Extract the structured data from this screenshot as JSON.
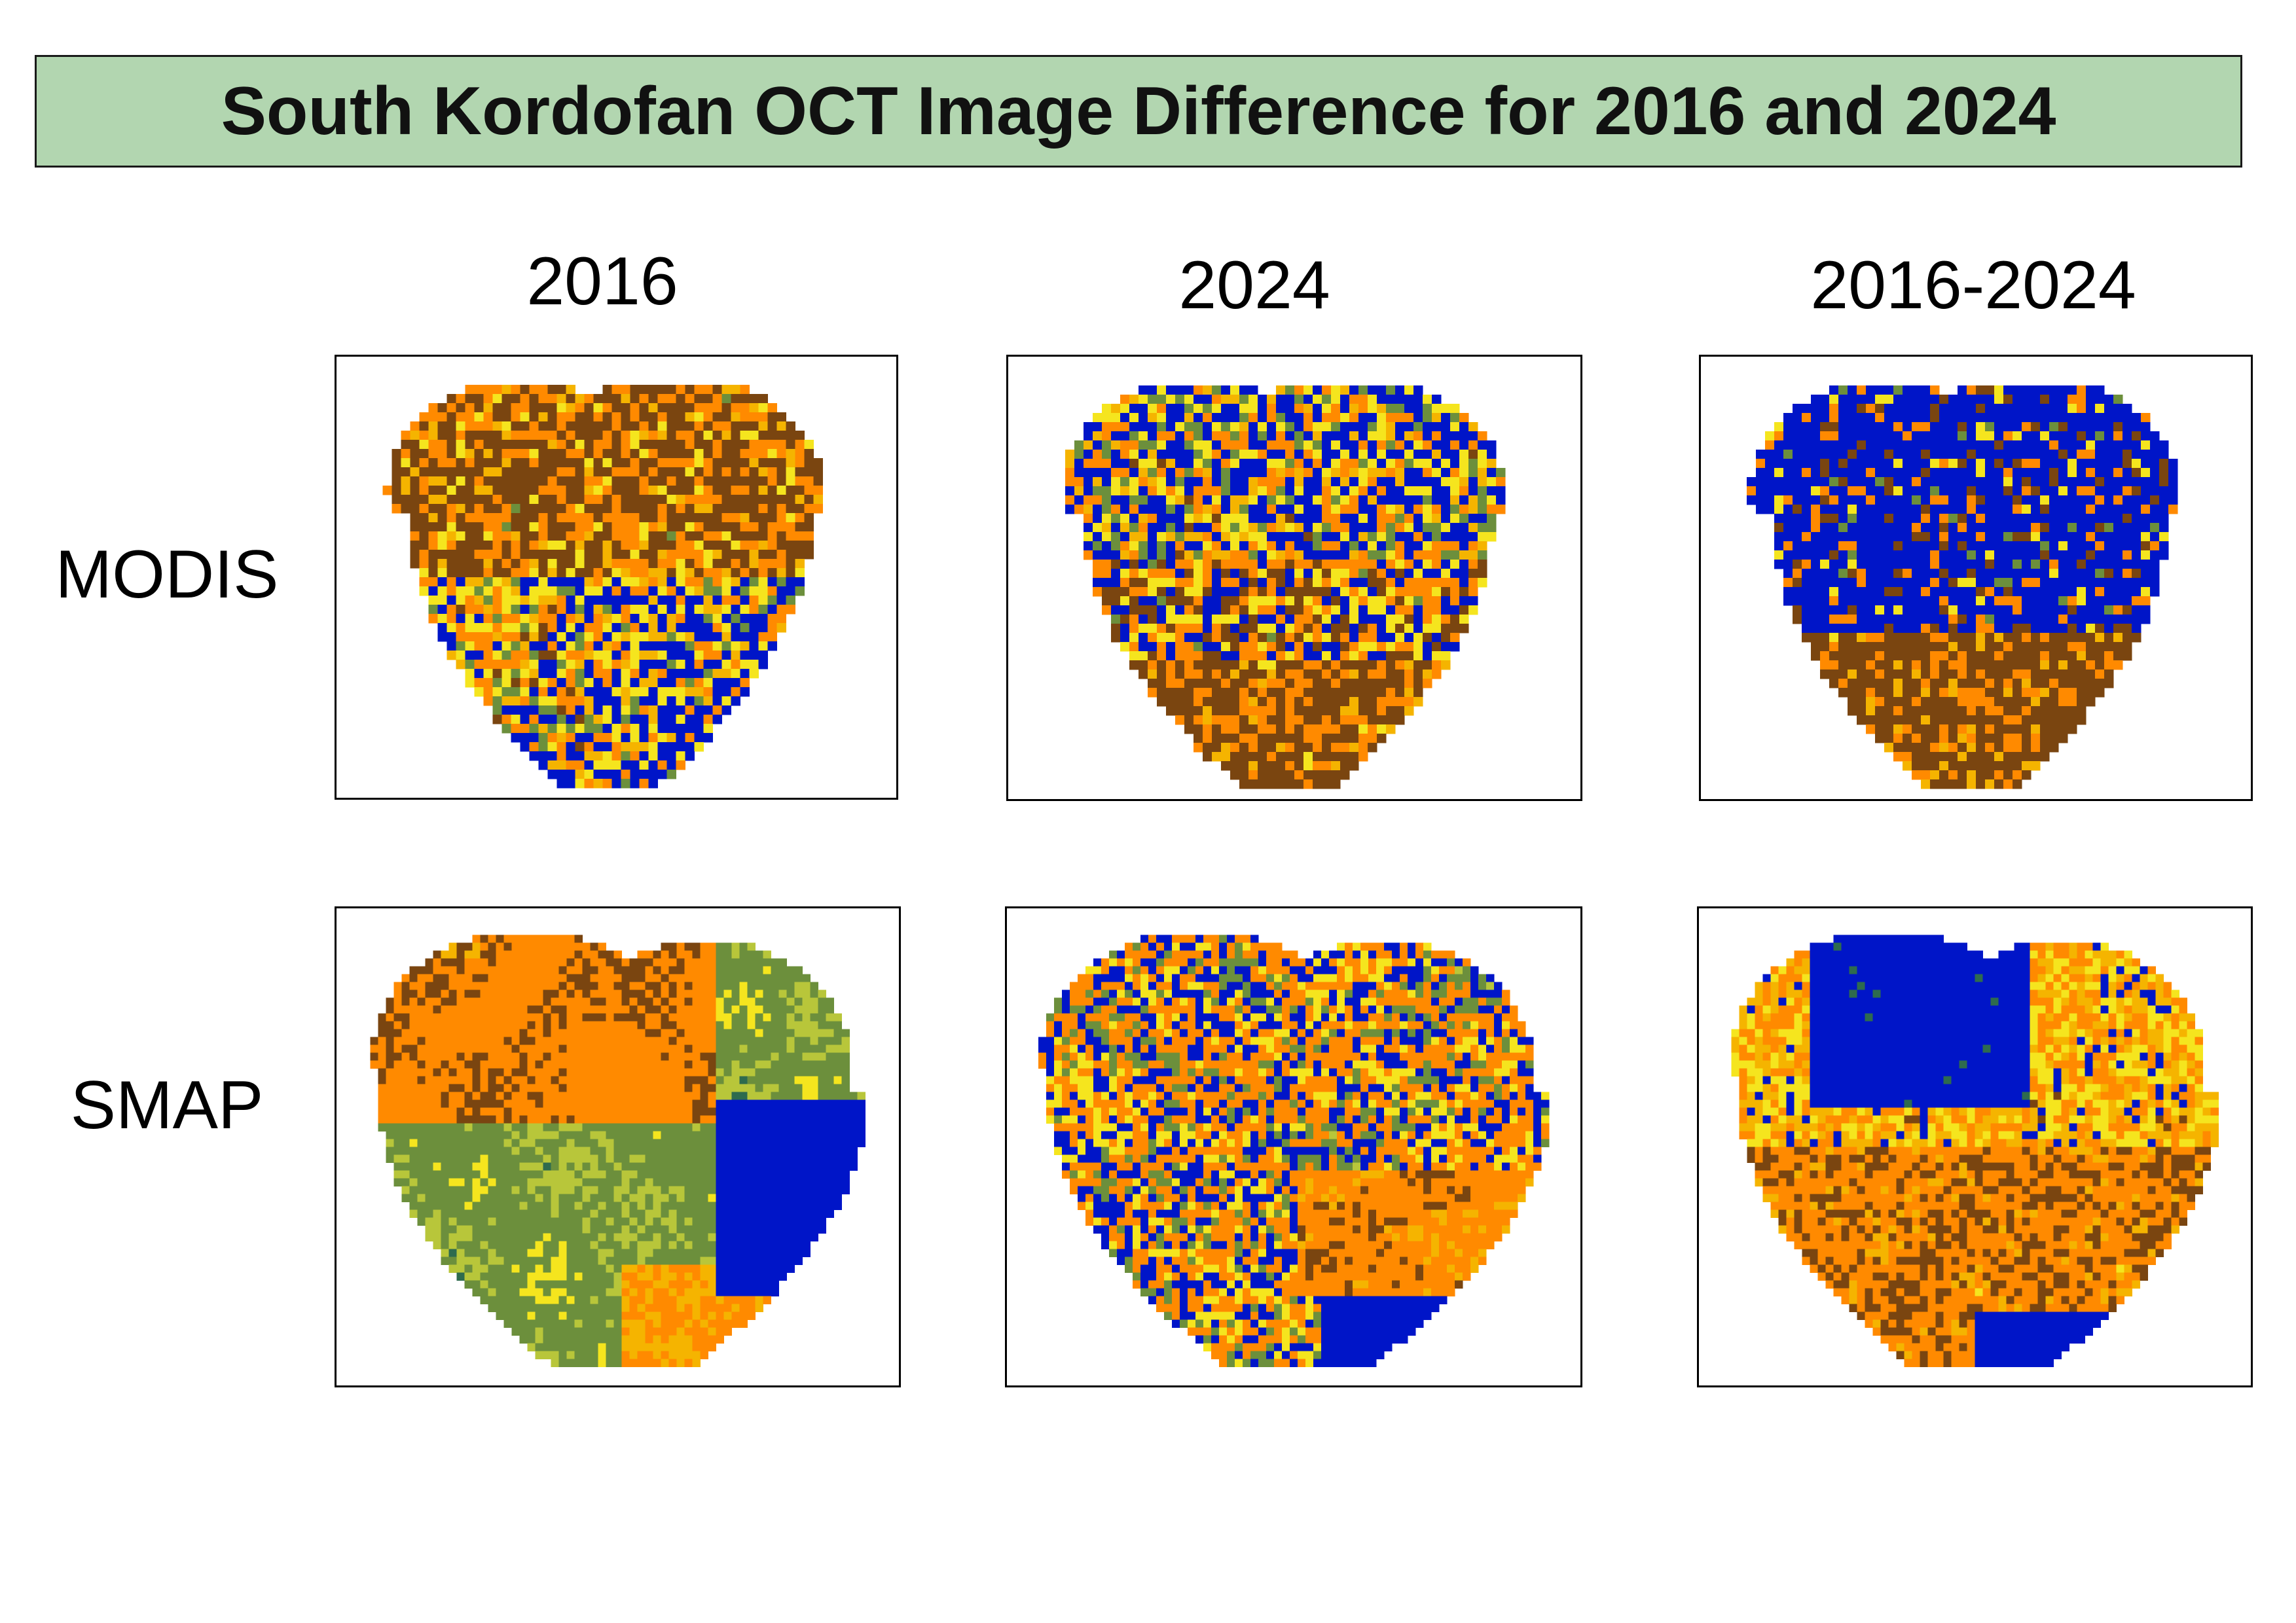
{
  "title": "South Kordofan OCT Image Difference for 2016 and 2024",
  "columns": [
    "2016",
    "2024",
    "2016-2024"
  ],
  "rows": [
    "MODIS",
    "SMAP"
  ],
  "palette": {
    "brown": "#7a4510",
    "orange": "#ff8a00",
    "amber": "#f5b400",
    "yellow": "#f5e51e",
    "yellow_green": "#b8c63a",
    "olive_green": "#6c8f3c",
    "teal_green": "#2e6b4e",
    "blue": "#0015c8"
  },
  "panels": [
    {
      "row": "MODIS",
      "column": "2016",
      "dominant_colors": [
        "brown",
        "orange",
        "blue",
        "yellow"
      ]
    },
    {
      "row": "MODIS",
      "column": "2024",
      "dominant_colors": [
        "blue",
        "orange",
        "brown",
        "yellow"
      ]
    },
    {
      "row": "MODIS",
      "column": "2016-2024",
      "dominant_colors": [
        "blue",
        "brown",
        "orange"
      ]
    },
    {
      "row": "SMAP",
      "column": "2016",
      "dominant_colors": [
        "orange",
        "yellow",
        "olive_green",
        "blue"
      ]
    },
    {
      "row": "SMAP",
      "column": "2024",
      "dominant_colors": [
        "yellow",
        "orange",
        "blue",
        "olive_green"
      ]
    },
    {
      "row": "SMAP",
      "column": "2016-2024",
      "dominant_colors": [
        "blue",
        "orange",
        "brown",
        "yellow"
      ]
    }
  ]
}
